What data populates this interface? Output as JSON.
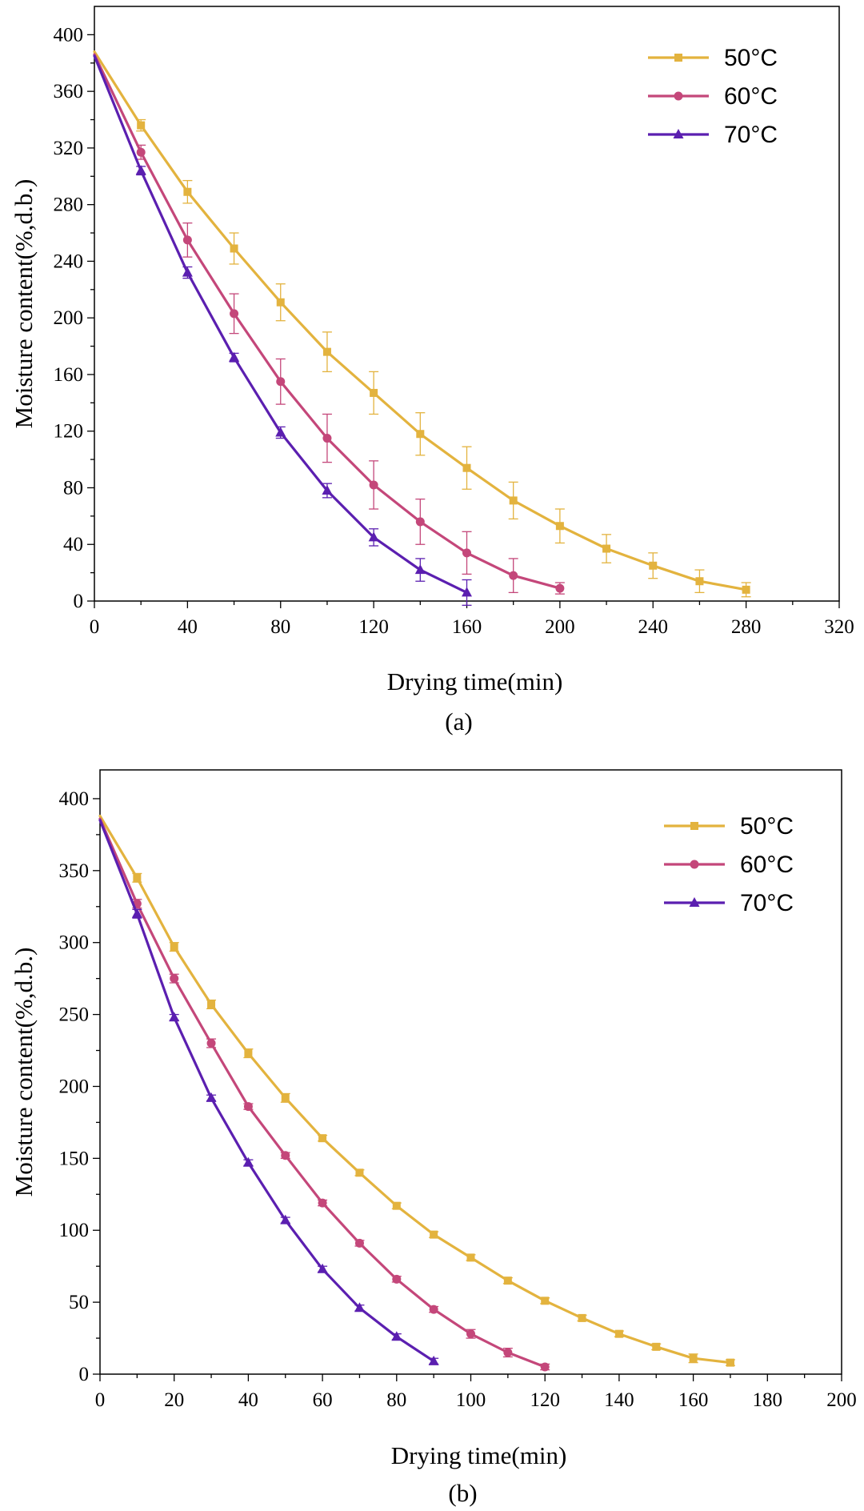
{
  "colors": {
    "50": "#e3b33e",
    "60": "#c4477a",
    "70": "#5b1fb0"
  },
  "chart_data": [
    {
      "type": "line",
      "caption": "(a)",
      "xlabel": "Drying time(min)",
      "ylabel": "Moisture content(%,d.b.)",
      "xlim": [
        0,
        320
      ],
      "ylim": [
        0,
        420
      ],
      "xticks": [
        0,
        40,
        80,
        120,
        160,
        200,
        240,
        280,
        320
      ],
      "yticks": [
        0,
        40,
        80,
        120,
        160,
        200,
        240,
        280,
        320,
        360,
        400
      ],
      "xticks_minor": [
        20,
        60,
        100,
        140,
        180,
        220,
        260,
        300
      ],
      "yticks_minor": [
        20,
        60,
        100,
        140,
        180,
        220,
        260,
        300,
        340,
        380
      ],
      "legend": "top-right",
      "series": [
        {
          "name": "50°C",
          "color_key": "50",
          "marker": "square",
          "x": [
            0,
            20,
            40,
            60,
            80,
            100,
            120,
            140,
            160,
            180,
            200,
            220,
            240,
            260,
            280
          ],
          "y": [
            388,
            336,
            289,
            249,
            211,
            176,
            147,
            118,
            94,
            71,
            53,
            37,
            25,
            14,
            8
          ],
          "err": [
            0,
            4,
            8,
            11,
            13,
            14,
            15,
            15,
            15,
            13,
            12,
            10,
            9,
            8,
            5
          ]
        },
        {
          "name": "60°C",
          "color_key": "60",
          "marker": "circle",
          "x": [
            0,
            20,
            40,
            60,
            80,
            100,
            120,
            140,
            160,
            180,
            200
          ],
          "y": [
            386,
            317,
            255,
            203,
            155,
            115,
            82,
            56,
            34,
            18,
            9
          ],
          "err": [
            0,
            5,
            12,
            14,
            16,
            17,
            17,
            16,
            15,
            12,
            4
          ]
        },
        {
          "name": "70°C",
          "color_key": "70",
          "marker": "triangle",
          "x": [
            0,
            20,
            40,
            60,
            80,
            100,
            120,
            140,
            160
          ],
          "y": [
            385,
            304,
            232,
            172,
            119,
            78,
            45,
            22,
            6
          ],
          "err": [
            0,
            3,
            4,
            3,
            4,
            5,
            6,
            8,
            9
          ]
        }
      ]
    },
    {
      "type": "line",
      "caption": "(b)",
      "xlabel": "Drying time(min)",
      "ylabel": "Moisture content(%,d.b.)",
      "xlim": [
        0,
        200
      ],
      "ylim": [
        0,
        420
      ],
      "xticks": [
        0,
        20,
        40,
        60,
        80,
        100,
        120,
        140,
        160,
        180,
        200
      ],
      "yticks": [
        0,
        50,
        100,
        150,
        200,
        250,
        300,
        350,
        400
      ],
      "xticks_minor": [
        10,
        30,
        50,
        70,
        90,
        110,
        130,
        150,
        170,
        190
      ],
      "yticks_minor": [
        25,
        75,
        125,
        175,
        225,
        275,
        325,
        375
      ],
      "legend": "top-right",
      "series": [
        {
          "name": "50°C",
          "color_key": "50",
          "marker": "square",
          "x": [
            0,
            10,
            20,
            30,
            40,
            50,
            60,
            70,
            80,
            90,
            100,
            110,
            120,
            130,
            140,
            150,
            160,
            170
          ],
          "y": [
            388,
            345,
            297,
            257,
            223,
            192,
            164,
            140,
            117,
            97,
            81,
            65,
            51,
            39,
            28,
            19,
            11,
            8
          ],
          "err": [
            0,
            3,
            3,
            3,
            3,
            3,
            2,
            2,
            2,
            2,
            2,
            2,
            2,
            2,
            2,
            2,
            3,
            2
          ]
        },
        {
          "name": "60°C",
          "color_key": "60",
          "marker": "circle",
          "x": [
            0,
            10,
            20,
            30,
            40,
            50,
            60,
            70,
            80,
            90,
            100,
            110,
            120
          ],
          "y": [
            386,
            327,
            275,
            230,
            186,
            152,
            119,
            91,
            66,
            45,
            28,
            15,
            5
          ],
          "err": [
            0,
            3,
            3,
            3,
            2,
            2,
            2,
            2,
            2,
            2,
            3,
            3,
            2
          ]
        },
        {
          "name": "70°C",
          "color_key": "70",
          "marker": "triangle",
          "x": [
            0,
            10,
            20,
            30,
            40,
            50,
            60,
            70,
            80,
            90
          ],
          "y": [
            385,
            320,
            248,
            192,
            147,
            107,
            73,
            46,
            26,
            9
          ],
          "err": [
            0,
            3,
            2,
            2,
            2,
            2,
            2,
            2,
            2,
            2
          ]
        }
      ]
    }
  ]
}
